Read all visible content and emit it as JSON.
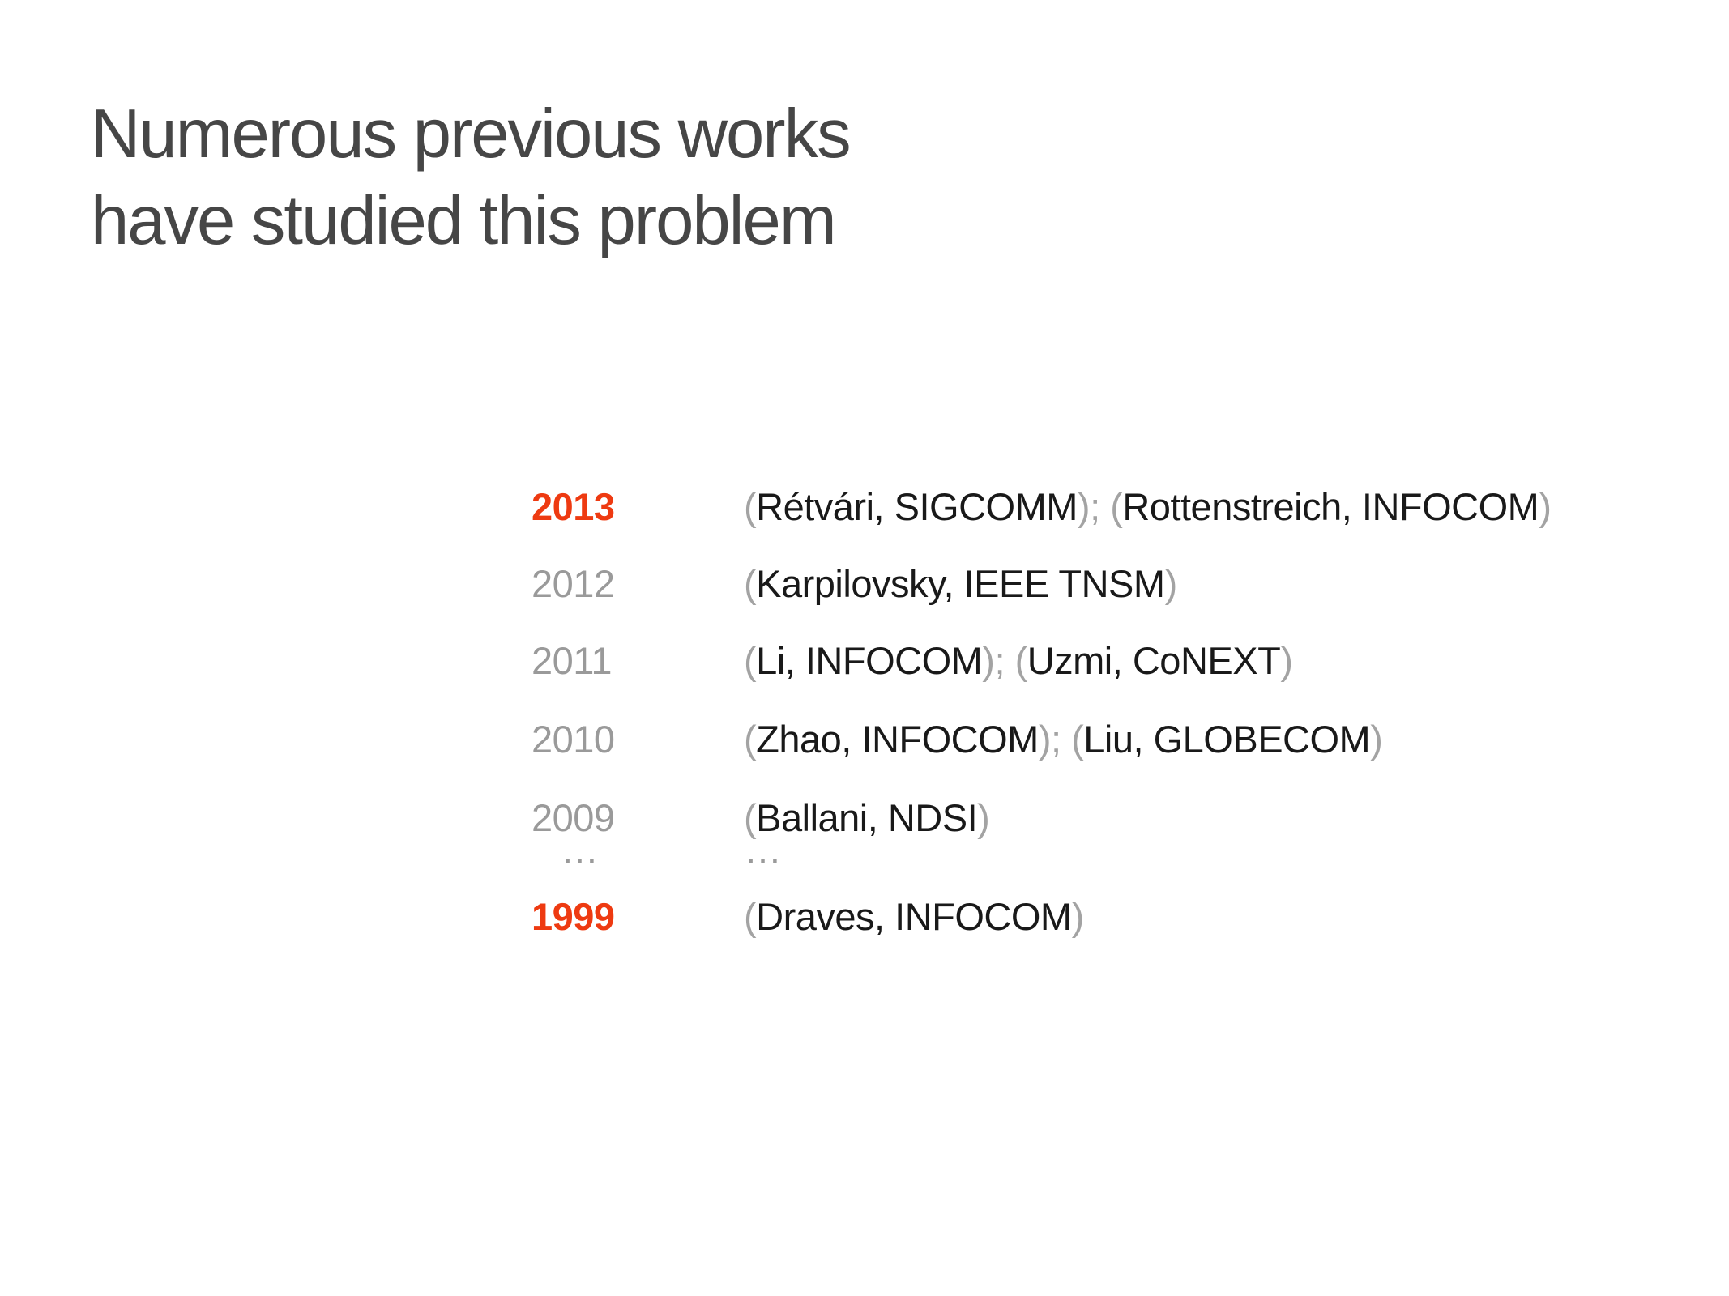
{
  "slide": {
    "title_lines": [
      "Numerous previous works",
      "have studied this problem"
    ],
    "colors": {
      "background": "#ffffff",
      "title": "#464646",
      "accent": "#ee3a11",
      "year_muted": "#9a9a9a",
      "citation_text": "#191919",
      "punctuation_muted": "#a3a3a3"
    },
    "rows": [
      {
        "year": "2013",
        "highlight": true,
        "ellipsis": false,
        "citation": "(Rétvári, SIGCOMM); (Rottenstreich, INFOCOM)"
      },
      {
        "year": "2012",
        "highlight": false,
        "ellipsis": false,
        "citation": "(Karpilovsky, IEEE TNSM)"
      },
      {
        "year": "2011",
        "highlight": false,
        "ellipsis": false,
        "citation": "(Li, INFOCOM); (Uzmi, CoNEXT)"
      },
      {
        "year": "2010",
        "highlight": false,
        "ellipsis": false,
        "citation": "(Zhao, INFOCOM); (Liu, GLOBECOM)"
      },
      {
        "year": "2009",
        "highlight": false,
        "ellipsis": false,
        "citation": "(Ballani, NDSI)"
      },
      {
        "year": "…",
        "highlight": false,
        "ellipsis": true,
        "citation": "…"
      },
      {
        "year": "1999",
        "highlight": true,
        "ellipsis": false,
        "citation": "(Draves, INFOCOM)"
      }
    ]
  }
}
